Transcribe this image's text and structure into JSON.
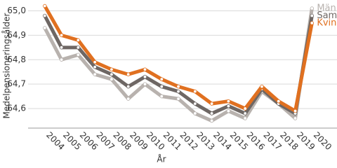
{
  "chart_data": {
    "type": "line",
    "x": [
      2004,
      2005,
      2006,
      2007,
      2008,
      2009,
      2010,
      2011,
      2012,
      2013,
      2014,
      2015,
      2016,
      2017,
      2018,
      2019,
      2020
    ],
    "xlabel": "År",
    "ylabel": "Medelpensioneringsålder",
    "xlim": [
      2003,
      2021.5
    ],
    "ylim": [
      64.52,
      65.03
    ],
    "yticks": [
      {
        "value": 64.6,
        "label": "64,6"
      },
      {
        "value": 64.7,
        "label": "64,7"
      },
      {
        "value": 64.8,
        "label": "64,8"
      },
      {
        "value": 64.9,
        "label": "64,9"
      },
      {
        "value": 65.0,
        "label": "65,0"
      }
    ],
    "grid": true,
    "series": [
      {
        "name": "Män",
        "color": "#b8b2ae",
        "values": [
          64.93,
          64.8,
          64.82,
          64.74,
          64.72,
          64.64,
          64.7,
          64.65,
          64.64,
          64.58,
          64.55,
          64.59,
          64.56,
          64.67,
          64.62,
          64.56,
          65.01
        ]
      },
      {
        "name": "Samtliga",
        "color": "#6e6764",
        "values": [
          64.98,
          64.85,
          64.85,
          64.77,
          64.74,
          64.69,
          64.73,
          64.69,
          64.67,
          64.62,
          64.58,
          64.61,
          64.58,
          64.68,
          64.62,
          64.58,
          64.98
        ]
      },
      {
        "name": "Kvinnor",
        "color": "#e07020",
        "values": [
          65.02,
          64.9,
          64.88,
          64.79,
          64.76,
          64.74,
          64.76,
          64.72,
          64.69,
          64.67,
          64.62,
          64.63,
          64.6,
          64.69,
          64.63,
          64.59,
          64.95
        ]
      }
    ]
  }
}
